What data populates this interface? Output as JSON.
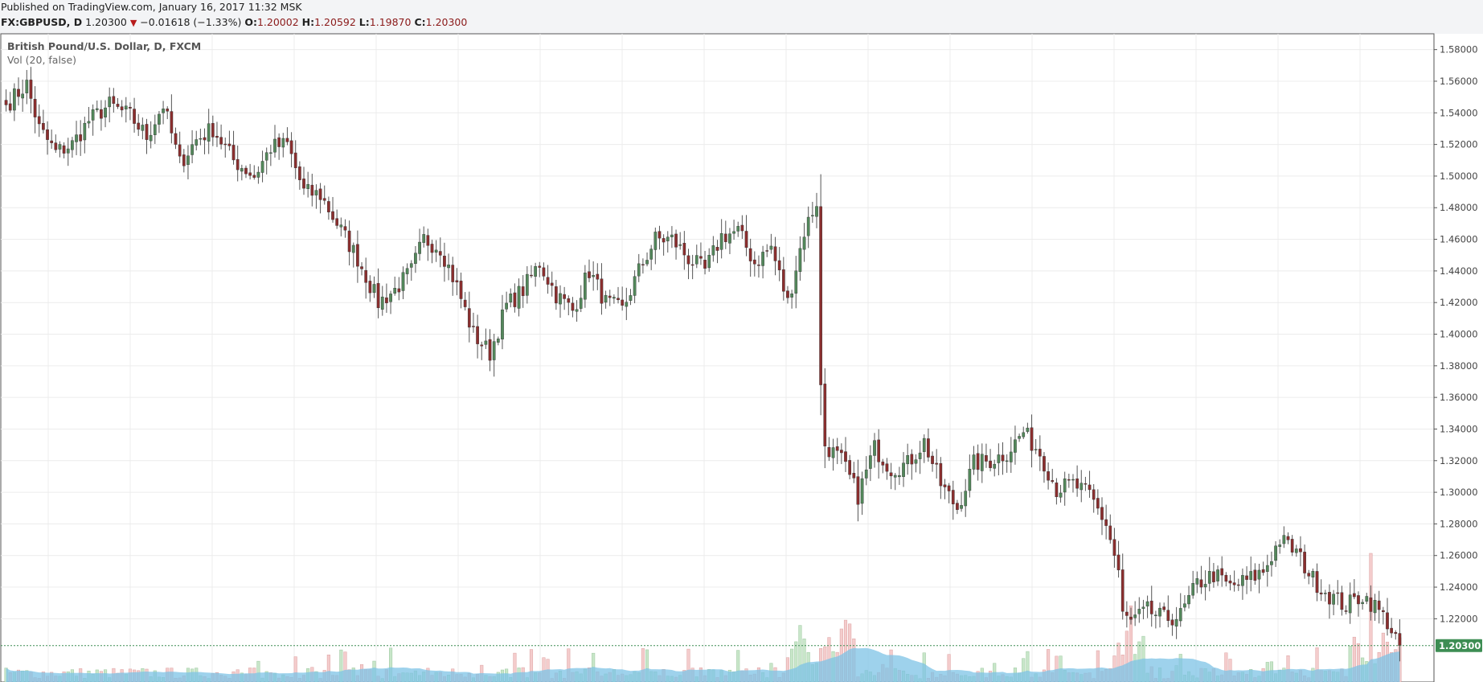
{
  "header": {
    "published_line": "Published on TradingView.com, January 16, 2017 11:32 MSK",
    "symbol": "FX:GBPUSD, D",
    "last_price": "1.20300",
    "change": "−0.01618 (−1.33%)",
    "open_label": "O:",
    "open_value": "1.20002",
    "high_label": "H:",
    "high_value": "1.20592",
    "low_label": "L:",
    "low_value": "1.19870",
    "close_label": "C:",
    "close_value": "1.20300"
  },
  "legend": {
    "series_title": "British Pound/U.S. Dollar, D, FXCM",
    "volume_study": "Vol (20, false)"
  },
  "colors": {
    "up_candle": "#53885b",
    "down_candle": "#8b2e2e",
    "wick": "#555555",
    "grid": "#ececec",
    "volume_up": "#c8e6c9",
    "volume_down": "#f4cccc",
    "volume_ma": "#7ec3e6",
    "price_label_bg": "#3d8d53"
  },
  "chart_data": {
    "type": "candlestick",
    "x_range": [
      "2015-11-30",
      "2017-01-16"
    ],
    "ylim": [
      1.18,
      1.59
    ],
    "y_ticks": [
      "1.58000",
      "1.56000",
      "1.54000",
      "1.52000",
      "1.50000",
      "1.48000",
      "1.46000",
      "1.44000",
      "1.42000",
      "1.40000",
      "1.38000",
      "1.36000",
      "1.34000",
      "1.32000",
      "1.30000",
      "1.28000",
      "1.26000",
      "1.24000",
      "1.22000"
    ],
    "last_price_label": "1.20300",
    "grid": true,
    "close_anchors": [
      [
        0,
        1.545
      ],
      [
        5,
        1.558
      ],
      [
        8,
        1.53
      ],
      [
        12,
        1.515
      ],
      [
        16,
        1.52
      ],
      [
        20,
        1.535
      ],
      [
        25,
        1.545
      ],
      [
        30,
        1.538
      ],
      [
        34,
        1.525
      ],
      [
        38,
        1.545
      ],
      [
        42,
        1.508
      ],
      [
        46,
        1.523
      ],
      [
        50,
        1.53
      ],
      [
        55,
        1.51
      ],
      [
        60,
        1.5
      ],
      [
        64,
        1.518
      ],
      [
        68,
        1.52
      ],
      [
        72,
        1.49
      ],
      [
        76,
        1.488
      ],
      [
        80,
        1.47
      ],
      [
        85,
        1.448
      ],
      [
        90,
        1.42
      ],
      [
        94,
        1.428
      ],
      [
        98,
        1.44
      ],
      [
        101,
        1.46
      ],
      [
        105,
        1.455
      ],
      [
        109,
        1.43
      ],
      [
        113,
        1.4
      ],
      [
        117,
        1.388
      ],
      [
        121,
        1.418
      ],
      [
        125,
        1.428
      ],
      [
        129,
        1.445
      ],
      [
        133,
        1.425
      ],
      [
        137,
        1.415
      ],
      [
        141,
        1.44
      ],
      [
        145,
        1.42
      ],
      [
        149,
        1.415
      ],
      [
        153,
        1.44
      ],
      [
        157,
        1.46
      ],
      [
        161,
        1.46
      ],
      [
        165,
        1.448
      ],
      [
        169,
        1.44
      ],
      [
        173,
        1.462
      ],
      [
        177,
        1.465
      ],
      [
        181,
        1.445
      ],
      [
        185,
        1.455
      ],
      [
        189,
        1.42
      ],
      [
        193,
        1.465
      ],
      [
        196,
        1.484
      ],
      [
        197,
        1.366
      ],
      [
        198,
        1.33
      ],
      [
        202,
        1.32
      ],
      [
        206,
        1.298
      ],
      [
        210,
        1.328
      ],
      [
        214,
        1.315
      ],
      [
        218,
        1.318
      ],
      [
        222,
        1.332
      ],
      [
        226,
        1.305
      ],
      [
        230,
        1.29
      ],
      [
        234,
        1.318
      ],
      [
        238,
        1.32
      ],
      [
        242,
        1.325
      ],
      [
        246,
        1.338
      ],
      [
        250,
        1.325
      ],
      [
        254,
        1.302
      ],
      [
        258,
        1.305
      ],
      [
        262,
        1.298
      ],
      [
        266,
        1.28
      ],
      [
        269,
        1.25
      ],
      [
        270,
        1.222
      ],
      [
        272,
        1.218
      ],
      [
        276,
        1.225
      ],
      [
        280,
        1.22
      ],
      [
        284,
        1.222
      ],
      [
        288,
        1.242
      ],
      [
        292,
        1.248
      ],
      [
        296,
        1.24
      ],
      [
        300,
        1.244
      ],
      [
        304,
        1.25
      ],
      [
        308,
        1.27
      ],
      [
        312,
        1.262
      ],
      [
        316,
        1.245
      ],
      [
        320,
        1.235
      ],
      [
        324,
        1.228
      ],
      [
        328,
        1.235
      ],
      [
        331,
        1.228
      ],
      [
        334,
        1.218
      ],
      [
        337,
        1.203
      ]
    ]
  }
}
